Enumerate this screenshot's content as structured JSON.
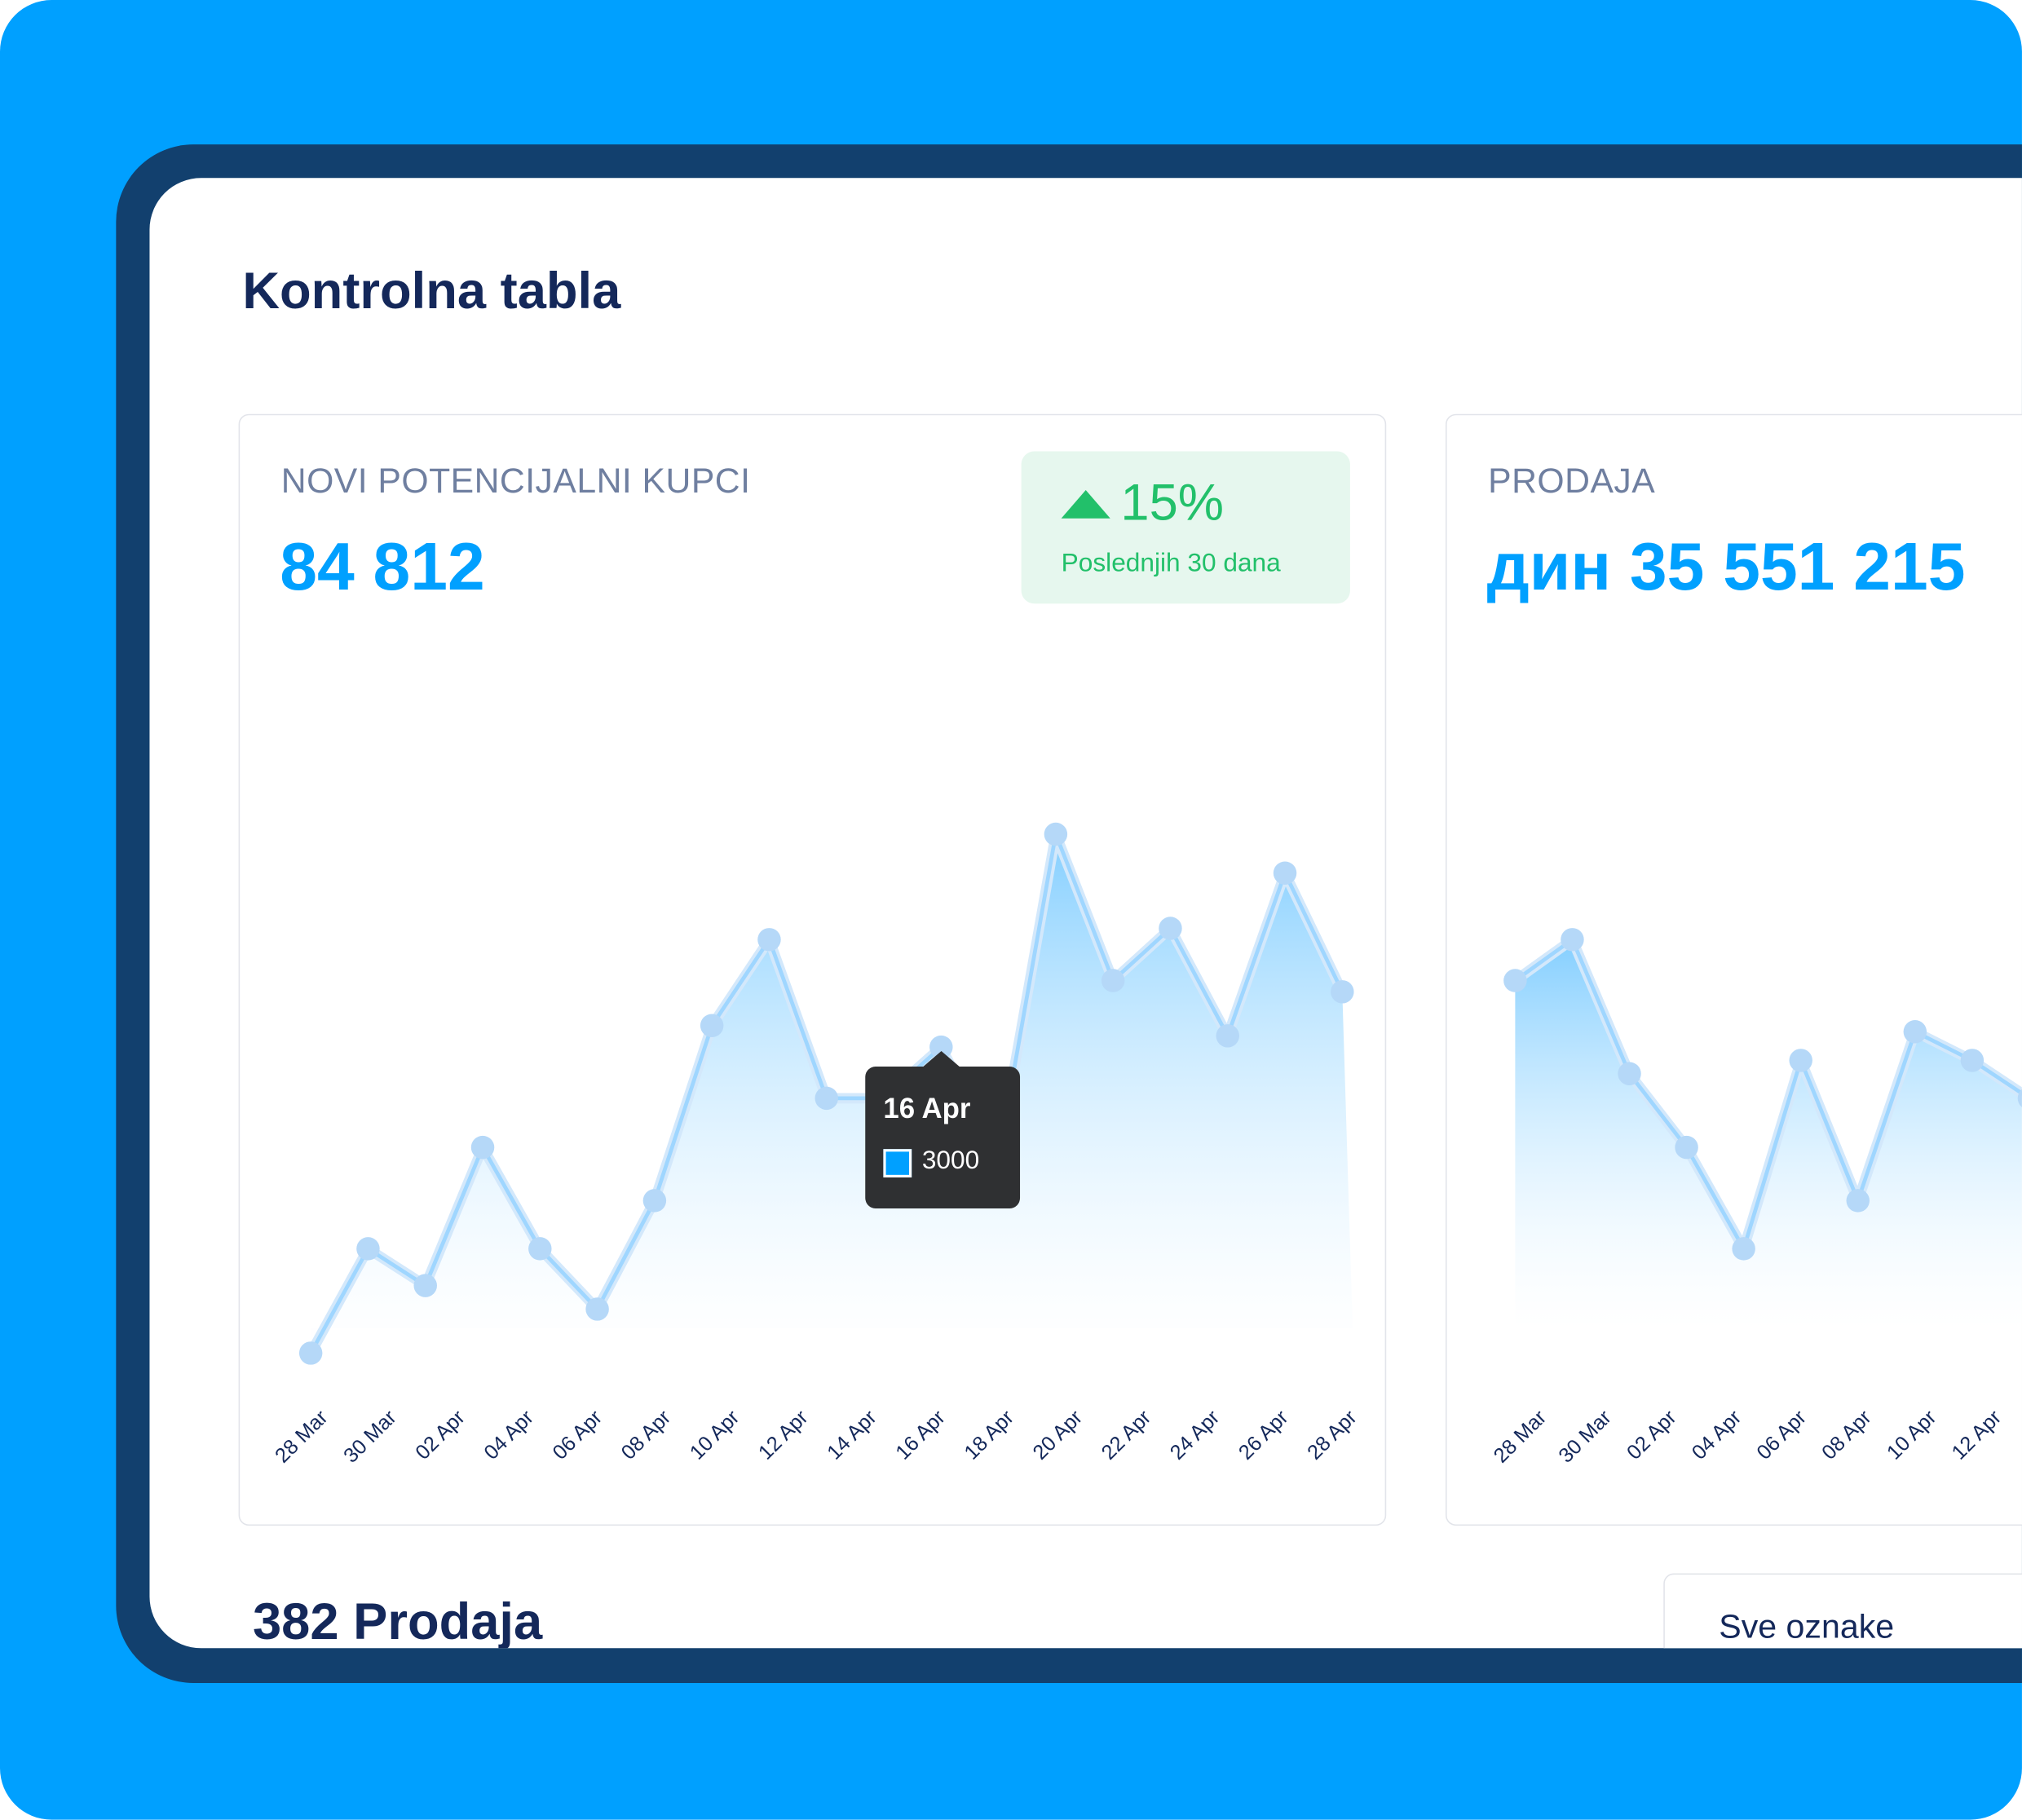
{
  "page": {
    "title": "Kontrolna tabla"
  },
  "colors": {
    "background": "#00A0FF",
    "frame": "#12406E",
    "accent": "#00A0FF",
    "positive": "#22C06A",
    "heading": "#14285A"
  },
  "cards": [
    {
      "label": "NOVI POTENCIJALNI KUPCI",
      "value": "84 812",
      "badge": {
        "icon": "triangle-up-icon",
        "change": "15%",
        "period": "Poslednjih 30 dana"
      },
      "tooltip": {
        "date": "16 Apr",
        "value": "3000"
      }
    },
    {
      "label": "PRODAJA",
      "value": "дин 35 551 215"
    }
  ],
  "chart_data": [
    {
      "type": "area",
      "x_tick_labels": [
        "28 Mar",
        "30 Mar",
        "02 Apr",
        "04 Apr",
        "06 Apr",
        "08 Apr",
        "10 Apr",
        "12 Apr",
        "14 Apr",
        "16 Apr",
        "18 Apr",
        "20 Apr",
        "22 Apr",
        "24 Apr",
        "26 Apr",
        "28 Apr"
      ],
      "values": [
        10,
        1030,
        670,
        2020,
        1030,
        440,
        1500,
        3210,
        4050,
        2500,
        2500,
        3000,
        1920,
        5080,
        3650,
        4160,
        3110,
        4700,
        3540
      ],
      "grid": false
    },
    {
      "type": "area",
      "x_tick_labels": [
        "28 Mar",
        "30 Mar",
        "02 Apr",
        "04 Apr",
        "06 Apr",
        "08 Apr",
        "10 Apr",
        "12 Apr"
      ],
      "values": [
        3650,
        4050,
        2740,
        2020,
        1030,
        2870,
        1500,
        3150,
        2870,
        2500
      ],
      "grid": false
    }
  ],
  "bottom": {
    "sales_count": "382 Prodaja",
    "tag_filter": "Sve oznake"
  }
}
